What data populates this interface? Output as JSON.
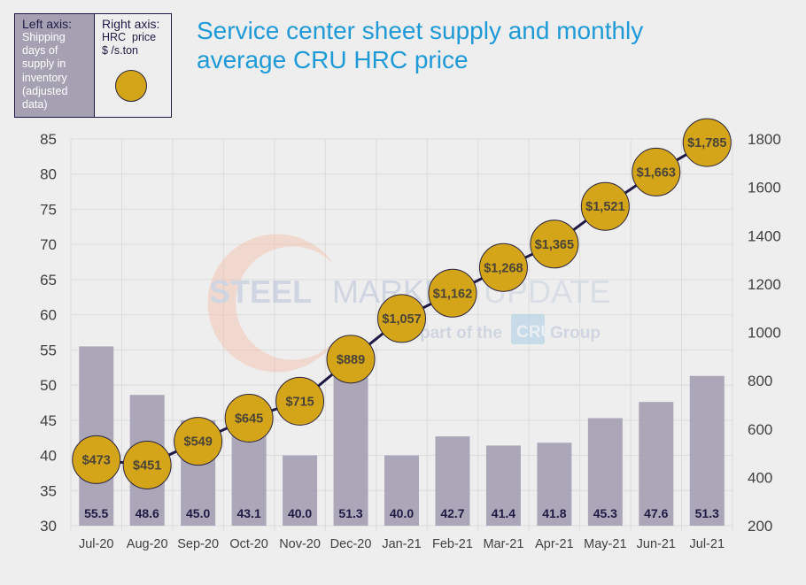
{
  "title": "Service center sheet supply and monthly average CRU HRC price",
  "title_lines": [
    "Service center sheet supply and monthly",
    "average CRU HRC price"
  ],
  "legend": {
    "left": {
      "heading": "Left axis:",
      "lines": [
        "Shipping",
        "days of",
        "supply in",
        "inventory",
        "(adjusted",
        "data)"
      ]
    },
    "right": {
      "heading": "Right axis:",
      "lines": [
        "HRC  price",
        "$ /s.ton"
      ],
      "marker_icon": "gold-circle-icon"
    }
  },
  "watermark": {
    "brand_bold": "STEEL",
    "brand_mid": "MARKET",
    "brand_light": "UPDATE",
    "tagline_pre": "part of the",
    "tagline_logo": "CRU",
    "tagline_post": "Group"
  },
  "colors": {
    "bar": "#a5a1b3",
    "marker": "#d4a518",
    "line": "#1e1a45",
    "title": "#1f9ad8",
    "bar_label": "#1e1a45",
    "marker_label": "#4a4438",
    "axis_text": "#404040",
    "grid": "#dcdcdc"
  },
  "chart_data": {
    "type": "bar",
    "title": "Service center sheet supply and monthly average CRU HRC price",
    "categories": [
      "Jul-20",
      "Aug-20",
      "Sep-20",
      "Oct-20",
      "Nov-20",
      "Dec-20",
      "Jan-21",
      "Feb-21",
      "Mar-21",
      "Apr-21",
      "May-21",
      "Jun-21",
      "Jul-21"
    ],
    "series": [
      {
        "name": "Shipping days of supply in inventory (adjusted data)",
        "type": "bar",
        "axis": "left",
        "values": [
          55.5,
          48.6,
          45.0,
          43.1,
          40.0,
          51.3,
          40.0,
          42.7,
          41.4,
          41.8,
          45.3,
          47.6,
          51.3
        ],
        "labels": [
          "55.5",
          "48.6",
          "45.0",
          "43.1",
          "40.0",
          "51.3",
          "40.0",
          "42.7",
          "41.4",
          "41.8",
          "45.3",
          "47.6",
          "51.3"
        ]
      },
      {
        "name": "HRC price $/s.ton",
        "type": "line",
        "axis": "right",
        "values": [
          473,
          451,
          549,
          645,
          715,
          889,
          1057,
          1162,
          1268,
          1365,
          1521,
          1663,
          1785
        ],
        "labels": [
          "$473",
          "$451",
          "$549",
          "$645",
          "$715",
          "$889",
          "$1,057",
          "$1,162",
          "$1,268",
          "$1,365",
          "$1,521",
          "$1,663",
          "$1,785"
        ]
      }
    ],
    "left_axis": {
      "label": "Shipping days of supply in inventory (adjusted data)",
      "ylim": [
        30,
        85
      ],
      "ticks": [
        30,
        35,
        40,
        45,
        50,
        55,
        60,
        65,
        70,
        75,
        80,
        85
      ]
    },
    "right_axis": {
      "label": "HRC price $/s.ton",
      "ylim": [
        200,
        1800
      ],
      "ticks": [
        200,
        400,
        600,
        800,
        1000,
        1200,
        1400,
        1600,
        1800
      ]
    },
    "grid": true,
    "legend_position": "top-left"
  }
}
